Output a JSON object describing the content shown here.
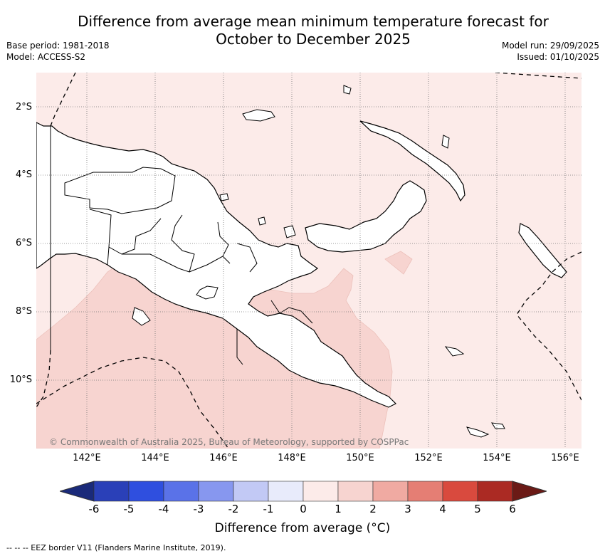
{
  "title_line1": "Difference from average mean minimum temperature forecast for",
  "title_line2": "October to December 2025",
  "base_period": "Base period: 1981-2018",
  "model": "Model: ACCESS-S2",
  "model_run": "Model run: 29/09/2025",
  "issued": "Issued: 01/10/2025",
  "copyright": "© Commonwealth of Australia 2025, Bureau of Meteorology, supported by COSPPac",
  "lat_labels": [
    "2°S",
    "4°S",
    "6°S",
    "8°S",
    "10°S"
  ],
  "lon_labels": [
    "142°E",
    "144°E",
    "146°E",
    "148°E",
    "150°E",
    "152°E",
    "154°E",
    "156°E"
  ],
  "colorbar": {
    "ticks": [
      "-6",
      "-5",
      "-4",
      "-3",
      "-2",
      "-1",
      "0",
      "1",
      "2",
      "3",
      "4",
      "5",
      "6"
    ],
    "colors": [
      "#1a2a7a",
      "#2a40b8",
      "#2f4fdf",
      "#5a72e8",
      "#8797ef",
      "#c2c9f5",
      "#e8ebfb",
      "#fcebe9",
      "#f7d4d0",
      "#f0aaa2",
      "#e57e74",
      "#d94a3e",
      "#ab2a23",
      "#6b1a16"
    ],
    "label": "Difference from average (°C)"
  },
  "legend_text": "-- -- -- EEZ border V11 (Flanders Marine Institute, 2019).",
  "map_colors": {
    "ocean": "#fcebe9",
    "warm": "#f7d4d0",
    "land": "#ffffff"
  }
}
